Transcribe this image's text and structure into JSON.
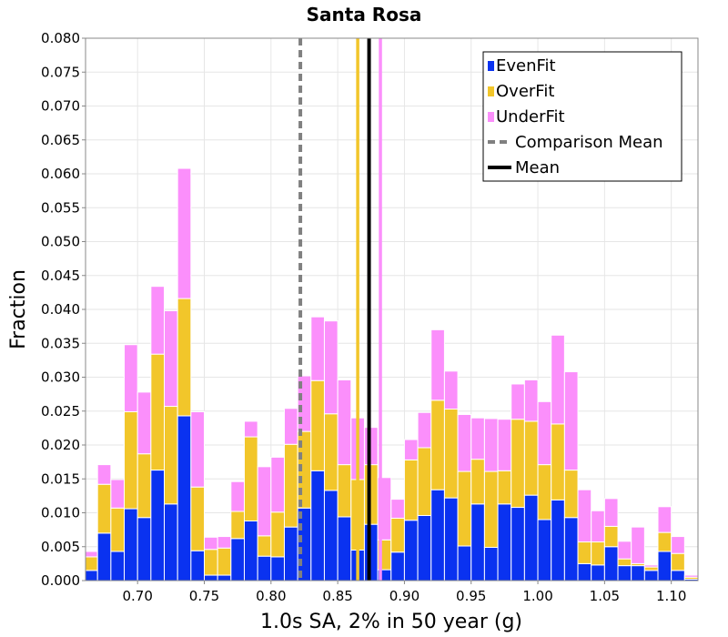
{
  "chart_data": {
    "type": "bar",
    "stacked": true,
    "title": "Santa Rosa",
    "xlabel": "1.0s SA, 2% in 50 year (g)",
    "ylabel": "Fraction",
    "xlim": [
      0.661,
      1.12
    ],
    "ylim": [
      0,
      0.08
    ],
    "bin_width": 0.01,
    "bin_start": 0.66,
    "x_ticks": [
      "0.70",
      "0.75",
      "0.80",
      "0.85",
      "0.90",
      "0.95",
      "1.00",
      "1.05",
      "1.10"
    ],
    "y_ticks": [
      "0.000",
      "0.005",
      "0.010",
      "0.015",
      "0.020",
      "0.025",
      "0.030",
      "0.035",
      "0.040",
      "0.045",
      "0.050",
      "0.055",
      "0.060",
      "0.065",
      "0.070",
      "0.075",
      "0.080"
    ],
    "grid": true,
    "legend_position": "top-right",
    "series": [
      {
        "name": "EvenFit",
        "color": "#0a32f0",
        "values": [
          0.0015,
          0.007,
          0.0043,
          0.0106,
          0.0093,
          0.0163,
          0.0113,
          0.0243,
          0.0044,
          0.0008,
          0.0008,
          0.0062,
          0.0088,
          0.0036,
          0.0035,
          0.0079,
          0.0107,
          0.0162,
          0.0133,
          0.0094,
          0.0045,
          0.0083,
          0.0016,
          0.0042,
          0.0089,
          0.0096,
          0.0134,
          0.0122,
          0.0051,
          0.0113,
          0.0049,
          0.0113,
          0.0108,
          0.0126,
          0.009,
          0.0119,
          0.0093,
          0.0025,
          0.0023,
          0.005,
          0.0022,
          0.0022,
          0.0015,
          0.0043,
          0.0015,
          0.0002,
          0.0002
        ]
      },
      {
        "name": "OverFit",
        "color": "#f2c62a",
        "values": [
          0.002,
          0.0072,
          0.0064,
          0.0143,
          0.0094,
          0.0171,
          0.0144,
          0.0173,
          0.0094,
          0.0038,
          0.004,
          0.004,
          0.0124,
          0.003,
          0.0066,
          0.0122,
          0.0113,
          0.0133,
          0.0113,
          0.0077,
          0.0104,
          0.0088,
          0.0044,
          0.005,
          0.0089,
          0.01,
          0.0132,
          0.0131,
          0.011,
          0.0066,
          0.0112,
          0.0049,
          0.013,
          0.0109,
          0.0081,
          0.0112,
          0.007,
          0.0032,
          0.0034,
          0.003,
          0.001,
          0.0003,
          0.0005,
          0.0028,
          0.0025,
          0.0003,
          0.0002
        ]
      },
      {
        "name": "UnderFit",
        "color": "#fb8ffb",
        "values": [
          0.0008,
          0.0029,
          0.0042,
          0.0099,
          0.0091,
          0.01,
          0.0141,
          0.0192,
          0.0111,
          0.0018,
          0.0017,
          0.0044,
          0.0023,
          0.0102,
          0.0081,
          0.0053,
          0.0082,
          0.0094,
          0.0137,
          0.0125,
          0.0091,
          0.0055,
          0.0092,
          0.0028,
          0.003,
          0.0052,
          0.0104,
          0.0056,
          0.0084,
          0.0061,
          0.0078,
          0.0076,
          0.0052,
          0.0061,
          0.0093,
          0.0131,
          0.0145,
          0.0077,
          0.0046,
          0.0041,
          0.0026,
          0.0054,
          0.0003,
          0.0038,
          0.0025,
          0.0003,
          0.0004
        ]
      }
    ],
    "vertical_lines": [
      {
        "name": "OverFit mean",
        "x": 0.865,
        "color": "#f2c62a",
        "dashed": false,
        "width": 3.5
      },
      {
        "name": "UnderFit mean",
        "x": 0.882,
        "color": "#fb8ffb",
        "dashed": false,
        "width": 3.5
      },
      {
        "name": "Comparison Mean",
        "x": 0.822,
        "color": "#808080",
        "dashed": true,
        "width": 4
      },
      {
        "name": "Mean",
        "x": 0.8735,
        "color": "#000000",
        "dashed": false,
        "width": 4
      }
    ],
    "legend": [
      {
        "label": "EvenFit",
        "kind": "swatch",
        "color": "#0a32f0"
      },
      {
        "label": "OverFit",
        "kind": "swatch",
        "color": "#f2c62a"
      },
      {
        "label": "UnderFit",
        "kind": "swatch",
        "color": "#fb8ffb"
      },
      {
        "label": "Comparison Mean",
        "kind": "dashed-line",
        "color": "#808080"
      },
      {
        "label": "Mean",
        "kind": "line",
        "color": "#000000"
      }
    ]
  }
}
